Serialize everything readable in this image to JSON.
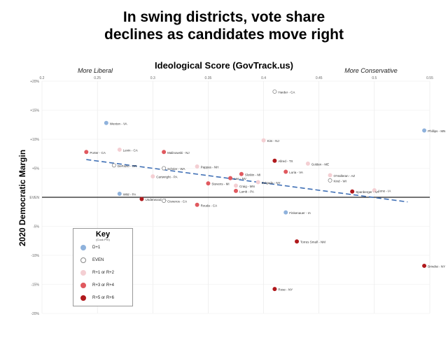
{
  "title_line1": "In swing districts, vote share",
  "title_line2": "declines as candidates move right",
  "chart_data": {
    "type": "scatter",
    "title": "In swing districts, vote share declines as candidates move right",
    "xlabel": "Ideological Score (GovTrack.us)",
    "ylabel": "2020 Democratic Margin",
    "x_left_label": "More Liberal",
    "x_right_label": "More Conservative",
    "xlim": [
      0.2,
      0.55
    ],
    "ylim": [
      -20,
      20
    ],
    "xticks": [
      "0.2",
      "0.25",
      "0.3",
      "0.35",
      "0.4",
      "0.45",
      "0.5",
      "0.55"
    ],
    "yticks": [
      {
        "value": 20,
        "label": "+20%"
      },
      {
        "value": 15,
        "label": "+15%"
      },
      {
        "value": 10,
        "label": "+10%"
      },
      {
        "value": 5,
        "label": "+5%"
      },
      {
        "value": 0,
        "label": "EVEN"
      },
      {
        "value": -5,
        "label": "-5%"
      },
      {
        "value": -10,
        "label": "-10%"
      },
      {
        "value": -15,
        "label": "-15%"
      },
      {
        "value": -20,
        "label": "-20%"
      }
    ],
    "trendline": {
      "x": [
        0.24,
        0.53
      ],
      "y": [
        6.5,
        -0.8
      ],
      "color": "#3f6fb5"
    },
    "categories": [
      {
        "key": "D+1",
        "label": "D+1",
        "color": "#8fb2dc",
        "stroke": "#8fb2dc"
      },
      {
        "key": "EVEN",
        "label": "EVEN",
        "color": "#ffffff",
        "stroke": "#888888"
      },
      {
        "key": "R12",
        "label": "R+1 or R+2",
        "color": "#f4cfd3",
        "stroke": "#f4cfd3"
      },
      {
        "key": "R34",
        "label": "R+3 or R+4",
        "color": "#e0595f",
        "stroke": "#e0595f"
      },
      {
        "key": "R56",
        "label": "R+5 or R+6",
        "color": "#b0191c",
        "stroke": "#b0191c"
      }
    ],
    "points": [
      {
        "label": "Harder - CA",
        "x": 0.41,
        "y": 18.2,
        "cat": "EVEN"
      },
      {
        "label": "Wexton - VA",
        "x": 0.258,
        "y": 12.8,
        "cat": "D+1"
      },
      {
        "label": "Phillips - MN",
        "x": 0.545,
        "y": 11.5,
        "cat": "D+1"
      },
      {
        "label": "Kim - NJ",
        "x": 0.4,
        "y": 9.8,
        "cat": "R12"
      },
      {
        "label": "Levin - CA",
        "x": 0.27,
        "y": 8.2,
        "cat": "R12"
      },
      {
        "label": "Porter - CA",
        "x": 0.24,
        "y": 7.8,
        "cat": "R34"
      },
      {
        "label": "Malinowski - NJ",
        "x": 0.31,
        "y": 7.8,
        "cat": "R34"
      },
      {
        "label": "Allred - TX",
        "x": 0.41,
        "y": 6.3,
        "cat": "R56"
      },
      {
        "label": "Golden - ME",
        "x": 0.44,
        "y": 5.8,
        "cat": "R12"
      },
      {
        "label": "DeFazio - OR",
        "x": 0.265,
        "y": 5.5,
        "cat": "EVEN"
      },
      {
        "label": "Schrier - WA",
        "x": 0.31,
        "y": 5.0,
        "cat": "EVEN"
      },
      {
        "label": "Pappas - NH",
        "x": 0.34,
        "y": 5.3,
        "cat": "R12"
      },
      {
        "label": "Luria - VA",
        "x": 0.42,
        "y": 4.4,
        "cat": "R34"
      },
      {
        "label": "Slotkin - MI",
        "x": 0.38,
        "y": 4.0,
        "cat": "R34"
      },
      {
        "label": "O'Halleran - AZ",
        "x": 0.46,
        "y": 3.8,
        "cat": "R12"
      },
      {
        "label": "Cartwright - PA",
        "x": 0.3,
        "y": 3.6,
        "cat": "R12"
      },
      {
        "label": "Lee - NV",
        "x": 0.37,
        "y": 3.3,
        "cat": "R34"
      },
      {
        "label": "Kind - WI",
        "x": 0.46,
        "y": 2.9,
        "cat": "EVEN"
      },
      {
        "label": "Delgado - NY",
        "x": 0.395,
        "y": 2.6,
        "cat": "R12"
      },
      {
        "label": "Stevens - MI",
        "x": 0.35,
        "y": 2.4,
        "cat": "R34"
      },
      {
        "label": "Craig - MN",
        "x": 0.375,
        "y": 2.0,
        "cat": "R12"
      },
      {
        "label": "Lamb - PA",
        "x": 0.375,
        "y": 1.1,
        "cat": "R34"
      },
      {
        "label": "Axne - IA",
        "x": 0.5,
        "y": 1.2,
        "cat": "R12"
      },
      {
        "label": "Spanberger - VA",
        "x": 0.48,
        "y": 1.0,
        "cat": "R56"
      },
      {
        "label": "Wild - PA",
        "x": 0.27,
        "y": 0.6,
        "cat": "D+1"
      },
      {
        "label": "Underwood - IL",
        "x": 0.29,
        "y": -0.3,
        "cat": "R56"
      },
      {
        "label": "Cisneros - CA",
        "x": 0.31,
        "y": -0.6,
        "cat": "EVEN"
      },
      {
        "label": "Rouda - CA",
        "x": 0.34,
        "y": -1.3,
        "cat": "R34"
      },
      {
        "label": "Finkenauer - IA",
        "x": 0.42,
        "y": -2.6,
        "cat": "D+1"
      },
      {
        "label": "Torres Small - NM",
        "x": 0.43,
        "y": -7.6,
        "cat": "R56"
      },
      {
        "label": "Brindisi - NY",
        "x": 0.545,
        "y": -11.8,
        "cat": "R56"
      },
      {
        "label": "Rose - NY",
        "x": 0.41,
        "y": -15.8,
        "cat": "R56"
      }
    ]
  },
  "key": {
    "title": "Key",
    "subtitle": "(Cook PVI)",
    "items": [
      {
        "label": "D+1",
        "color": "#8fb2dc",
        "stroke": "#8fb2dc"
      },
      {
        "label": "EVEN",
        "color": "#ffffff",
        "stroke": "#888888"
      },
      {
        "label": "R+1 or R+2",
        "color": "#f4cfd3",
        "stroke": "#f4cfd3"
      },
      {
        "label": "R+3 or R+4",
        "color": "#e0595f",
        "stroke": "#e0595f"
      },
      {
        "label": "R+5 or R+6",
        "color": "#b0191c",
        "stroke": "#b0191c"
      }
    ]
  }
}
